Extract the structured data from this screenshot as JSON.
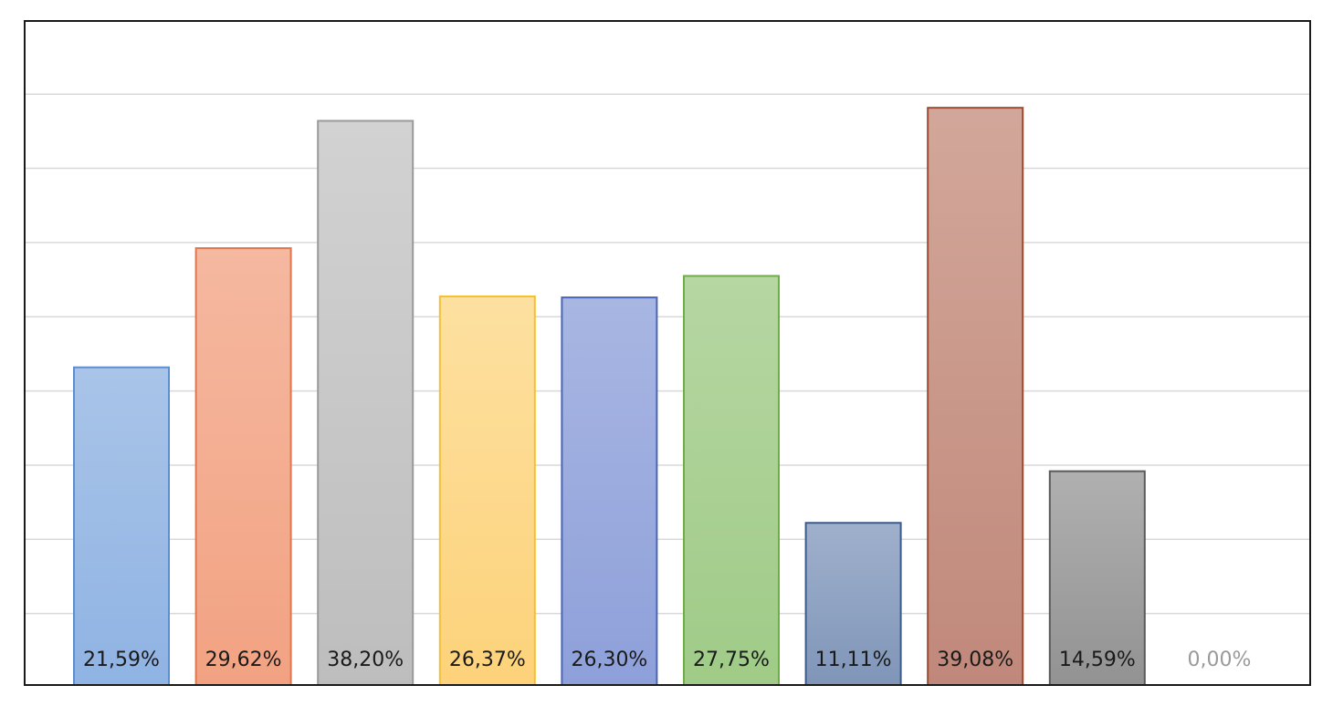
{
  "chart_data": {
    "type": "bar",
    "title": "",
    "xlabel": "",
    "ylabel": "",
    "ylim": [
      0,
      45
    ],
    "grid": true,
    "legend": "none",
    "categories": [
      "",
      "",
      "",
      "",
      "",
      "",
      "",
      "",
      "",
      ""
    ],
    "values": [
      21.59,
      29.62,
      38.2,
      26.37,
      26.3,
      27.75,
      11.11,
      39.08,
      14.59,
      0.0
    ],
    "data_labels": [
      "21,59%",
      "29,62%",
      "38,20%",
      "26,37%",
      "26,30%",
      "27,75%",
      "11,11%",
      "39,08%",
      "14,59%",
      "0,00%"
    ],
    "colors": [
      {
        "top": "#a9c4e8",
        "bottom": "#8fb3e3",
        "stroke": "#5b8fd0"
      },
      {
        "top": "#f5b8a0",
        "bottom": "#f2a282",
        "stroke": "#e0764d"
      },
      {
        "top": "#d2d2d2",
        "bottom": "#bdbdbd",
        "stroke": "#9a9a9a"
      },
      {
        "top": "#fde0a0",
        "bottom": "#fdd27a",
        "stroke": "#f5c030"
      },
      {
        "top": "#a8b6e2",
        "bottom": "#8ea0da",
        "stroke": "#4a64b8"
      },
      {
        "top": "#b6d6a2",
        "bottom": "#9fcb87",
        "stroke": "#70ad47"
      },
      {
        "top": "#9fb0cc",
        "bottom": "#7f95b8",
        "stroke": "#3b5b8c"
      },
      {
        "top": "#d2a79a",
        "bottom": "#c0887a",
        "stroke": "#9c4a30"
      },
      {
        "top": "#b0b0b0",
        "bottom": "#929292",
        "stroke": "#5a5a5a"
      },
      {
        "top": "#ffffff",
        "bottom": "#ffffff",
        "stroke": "#ffffff"
      }
    ],
    "label_colors": [
      "#1a1a1a",
      "#1a1a1a",
      "#1a1a1a",
      "#1a1a1a",
      "#1a1a1a",
      "#1a1a1a",
      "#1a1a1a",
      "#1a1a1a",
      "#1a1a1a",
      "#9a9a9a"
    ],
    "gridline_color": "#d9d9d9",
    "border_color": "#1a1a1a"
  }
}
